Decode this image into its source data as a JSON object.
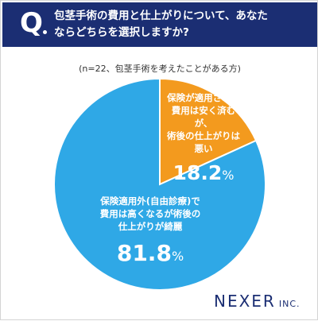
{
  "header": {
    "q_mark": "Q",
    "question_line1": "包茎手術の費用と仕上がりについて、あなた",
    "question_line2": "ならどちらを選択しますか?"
  },
  "note": "(n=22、包茎手術を考えたことがある方)",
  "chart_data": {
    "type": "pie",
    "slices": [
      {
        "label_line1": "保険が適用されて",
        "label_line2": "費用は安く済むが、",
        "label_line3": "術後の仕上がりは悪い",
        "value": 18.2,
        "value_text": "18.2",
        "color": "#f39a1e"
      },
      {
        "label_line1": "保険適用外(自由診療)で",
        "label_line2": "費用は高くなるが術後の",
        "label_line3": "仕上がりが綺麗",
        "value": 81.8,
        "value_text": "81.8",
        "color": "#2fa8e6"
      }
    ],
    "unit": "%",
    "start": "12 o'clock",
    "direction": "clockwise"
  },
  "logo": {
    "main": "NEXER",
    "suffix": "INC."
  },
  "colors": {
    "header_bg": "#1b2e73",
    "divider": "#ffffff"
  }
}
